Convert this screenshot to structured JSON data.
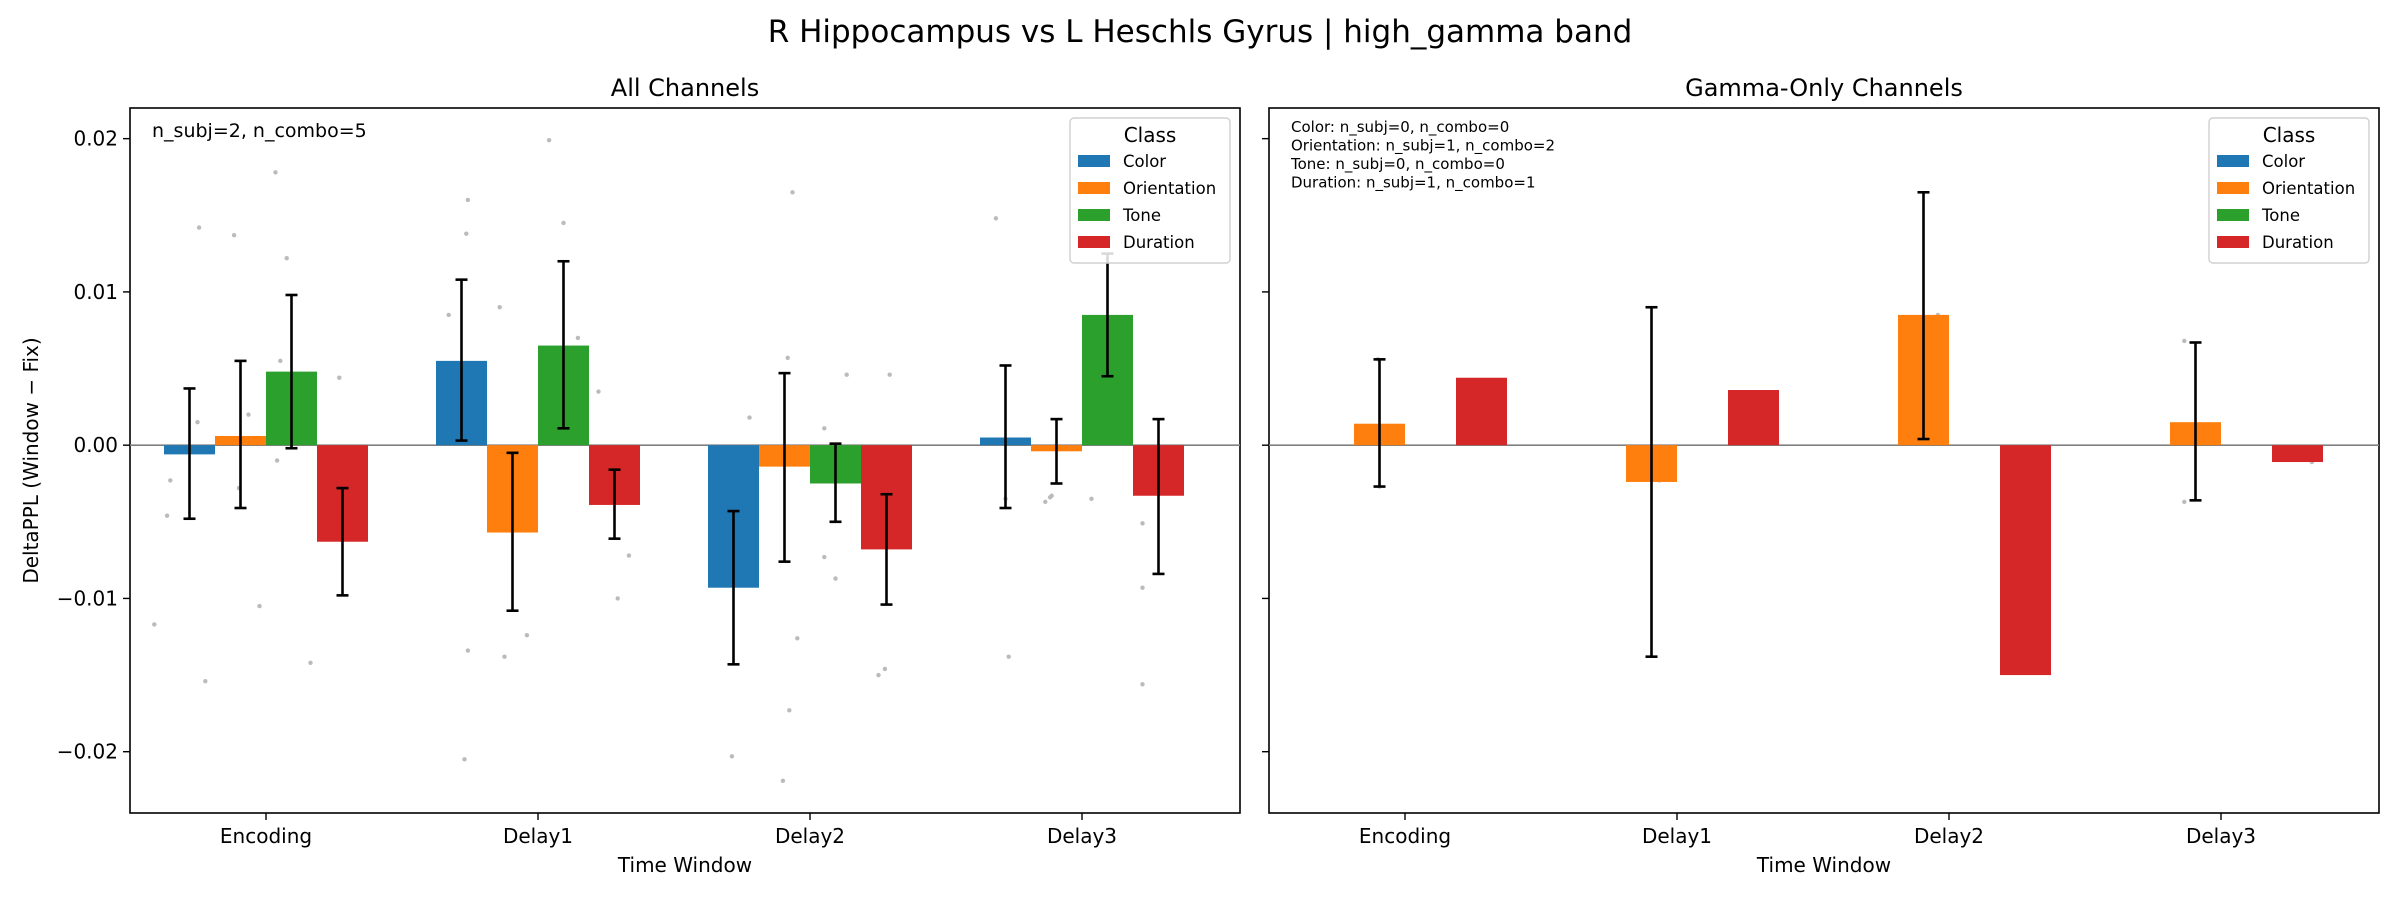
{
  "figure": {
    "suptitle": "R Hippocampus vs L Heschls Gyrus  |  high_gamma band"
  },
  "classes": [
    "Color",
    "Orientation",
    "Tone",
    "Duration"
  ],
  "colors": {
    "Color": "#1f77b4",
    "Orientation": "#ff7f0e",
    "Tone": "#2ca02c",
    "Duration": "#d62728",
    "zero_line": "#808080",
    "points": "#bbbbbb"
  },
  "chart_data": [
    {
      "type": "bar",
      "title": "All Channels",
      "xlabel": "Time Window",
      "ylabel": "DeltaPPL (Window − Fix)",
      "categories": [
        "Encoding",
        "Delay1",
        "Delay2",
        "Delay3"
      ],
      "ylim": [
        -0.024,
        0.022
      ],
      "yticks": [
        -0.02,
        -0.01,
        0.0,
        0.01,
        0.02
      ],
      "ytick_labels": [
        "−0.02",
        "−0.01",
        "0.00",
        "0.01",
        "0.02"
      ],
      "annotation": [
        "n_subj=2, n_combo=5"
      ],
      "legend": {
        "title": "Class",
        "placement": "top-right"
      },
      "series": [
        {
          "name": "Color",
          "values": [
            -0.0006,
            0.0055,
            -0.0093,
            0.0005
          ],
          "err_low": [
            -0.0048,
            0.0003,
            -0.0143,
            -0.0041
          ],
          "err_high": [
            0.0037,
            0.0108,
            -0.0043,
            0.0052
          ]
        },
        {
          "name": "Orientation",
          "values": [
            0.0006,
            -0.0057,
            -0.0014,
            -0.0004
          ],
          "err_low": [
            -0.0041,
            -0.0108,
            -0.0076,
            -0.0025
          ],
          "err_high": [
            0.0055,
            -0.0005,
            0.0047,
            0.0017
          ]
        },
        {
          "name": "Tone",
          "values": [
            0.0048,
            0.0065,
            -0.0025,
            0.0085
          ],
          "err_low": [
            -0.0002,
            0.0011,
            -0.005,
            0.0045
          ],
          "err_high": [
            0.0098,
            0.012,
            0.0001,
            0.0125
          ]
        },
        {
          "name": "Duration",
          "values": [
            -0.0063,
            -0.0039,
            -0.0068,
            -0.0033
          ],
          "err_low": [
            -0.0098,
            -0.0061,
            -0.0104,
            -0.0084
          ],
          "err_high": [
            -0.0028,
            -0.0016,
            -0.0032,
            0.0017
          ]
        }
      ],
      "scatter_points": [
        [
          0,
          0.0142
        ],
        [
          0,
          0.0015
        ],
        [
          0,
          -0.0046
        ],
        [
          0,
          -0.0117
        ],
        [
          0,
          -0.0023
        ],
        [
          1,
          0.0137
        ],
        [
          1,
          -0.0154
        ],
        [
          1,
          0.002
        ],
        [
          1,
          -0.0028
        ],
        [
          2,
          0.0178
        ],
        [
          2,
          0.0122
        ],
        [
          2,
          0.0055
        ],
        [
          2,
          -0.001
        ],
        [
          2,
          -0.0105
        ],
        [
          3,
          0.0044
        ],
        [
          3,
          -0.0142
        ],
        [
          3,
          -0.0045
        ],
        [
          4,
          0.016
        ],
        [
          4,
          0.0138
        ],
        [
          4,
          0.0085
        ],
        [
          4,
          -0.0134
        ],
        [
          5,
          0.009
        ],
        [
          5,
          -0.0205
        ],
        [
          5,
          -0.0138
        ],
        [
          5,
          -0.0124
        ],
        [
          6,
          0.0199
        ],
        [
          6,
          0.0145
        ],
        [
          6,
          0.007
        ],
        [
          7,
          0.0035
        ],
        [
          7,
          -0.0026
        ],
        [
          7,
          -0.0072
        ],
        [
          7,
          -0.01
        ],
        [
          8,
          0.0018
        ],
        [
          8,
          -0.0203
        ],
        [
          8,
          -0.0057
        ],
        [
          9,
          0.0165
        ],
        [
          9,
          0.0057
        ],
        [
          9,
          -0.0126
        ],
        [
          9,
          -0.0173
        ],
        [
          9,
          -0.0219
        ],
        [
          10,
          0.0046
        ],
        [
          10,
          0.0011
        ],
        [
          10,
          -0.0073
        ],
        [
          10,
          -0.0087
        ],
        [
          11,
          0.0046
        ],
        [
          11,
          -0.0146
        ],
        [
          11,
          -0.015
        ],
        [
          12,
          0.0148
        ],
        [
          12,
          -0.0035
        ],
        [
          12,
          -0.0138
        ],
        [
          13,
          -0.0034
        ],
        [
          13,
          -0.0037
        ],
        [
          13,
          -0.0033
        ],
        [
          14,
          0.0068
        ],
        [
          14,
          -0.0035
        ],
        [
          15,
          -0.0051
        ],
        [
          15,
          -0.0093
        ],
        [
          15,
          -0.0156
        ]
      ]
    },
    {
      "type": "bar",
      "title": "Gamma-Only Channels",
      "xlabel": "Time Window",
      "ylabel": "",
      "categories": [
        "Encoding",
        "Delay1",
        "Delay2",
        "Delay3"
      ],
      "ylim": [
        -0.024,
        0.022
      ],
      "yticks": [
        -0.02,
        -0.01,
        0.0,
        0.01,
        0.02
      ],
      "annotation": [
        "Color: n_subj=0, n_combo=0",
        "Orientation: n_subj=1, n_combo=2",
        "Tone: n_subj=0, n_combo=0",
        "Duration: n_subj=1, n_combo=1"
      ],
      "legend": {
        "title": "Class",
        "placement": "top-right"
      },
      "series": [
        {
          "name": "Color",
          "values": [
            null,
            null,
            null,
            null
          ]
        },
        {
          "name": "Orientation",
          "values": [
            0.0014,
            -0.0024,
            0.0085,
            0.0015
          ],
          "err_low": [
            -0.0027,
            -0.0138,
            0.0004,
            -0.0036
          ],
          "err_high": [
            0.0056,
            0.009,
            0.0165,
            0.0067
          ]
        },
        {
          "name": "Tone",
          "values": [
            null,
            null,
            null,
            null
          ]
        },
        {
          "name": "Duration",
          "values": [
            0.0044,
            0.0036,
            -0.015,
            -0.0011
          ]
        }
      ],
      "scatter_points": [
        [
          1,
          0.0056
        ],
        [
          1,
          -0.0027
        ],
        [
          5,
          -0.0023
        ],
        [
          9,
          0.0085
        ],
        [
          13,
          0.0068
        ],
        [
          13,
          -0.0037
        ],
        [
          15,
          -0.0011
        ]
      ]
    }
  ]
}
